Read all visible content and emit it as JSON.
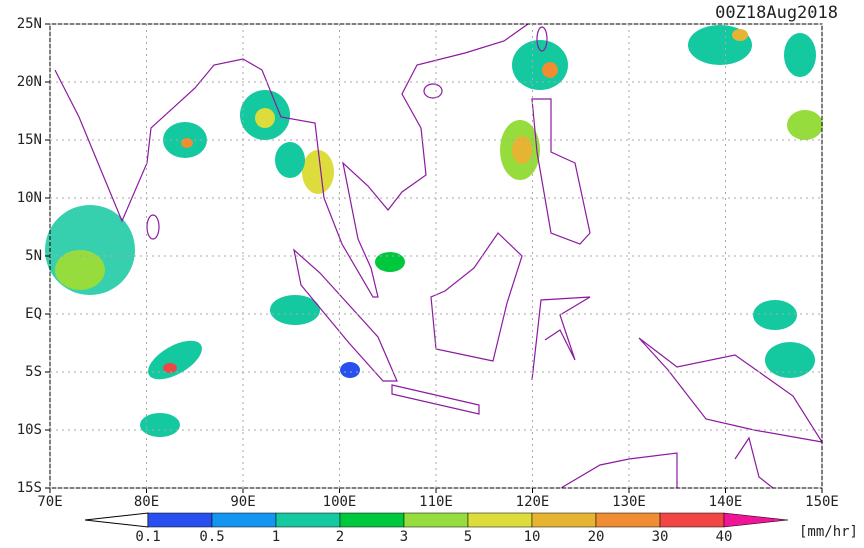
{
  "map": {
    "title": "00Z18Aug2018",
    "lon_ticks": [
      {
        "value": 70,
        "label": "70E"
      },
      {
        "value": 80,
        "label": "80E"
      },
      {
        "value": 90,
        "label": "90E"
      },
      {
        "value": 100,
        "label": "100E"
      },
      {
        "value": 110,
        "label": "110E"
      },
      {
        "value": 120,
        "label": "120E"
      },
      {
        "value": 130,
        "label": "130E"
      },
      {
        "value": 140,
        "label": "140E"
      },
      {
        "value": 150,
        "label": "150E"
      }
    ],
    "lat_ticks": [
      {
        "value": 25,
        "label": "25N"
      },
      {
        "value": 20,
        "label": "20N"
      },
      {
        "value": 15,
        "label": "15N"
      },
      {
        "value": 10,
        "label": "10N"
      },
      {
        "value": 5,
        "label": "5N"
      },
      {
        "value": 0,
        "label": "EQ"
      },
      {
        "value": -5,
        "label": "5S"
      },
      {
        "value": -10,
        "label": "10S"
      },
      {
        "value": -15,
        "label": "15S"
      }
    ],
    "colorbar": {
      "levels": [
        0.1,
        0.5,
        1,
        2,
        3,
        5,
        10,
        20,
        30,
        40
      ],
      "colors": [
        "#2850f0",
        "#1496f0",
        "#14c8a0",
        "#00c83c",
        "#96dc3c",
        "#dcdc3c",
        "#e6b432",
        "#f08c32",
        "#f04646",
        "#f01496"
      ],
      "unit": "[mm/hr]"
    }
  }
}
